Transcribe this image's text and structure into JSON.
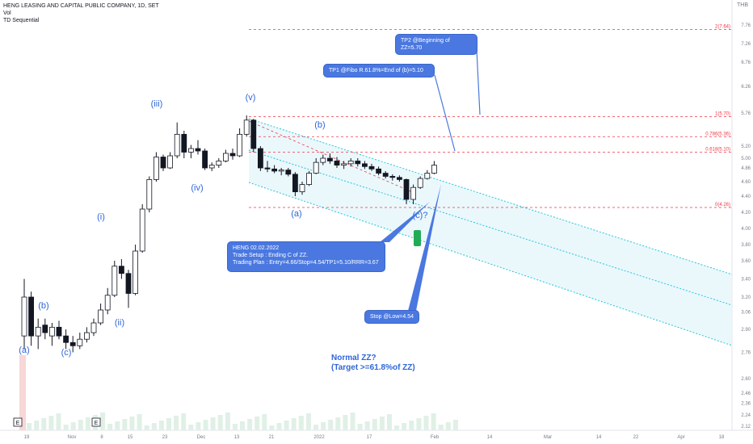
{
  "header": {
    "title": "HENG LEASING AND CAPITAL PUBLIC COMPANY, 1D, SET",
    "indicator1": "Vol",
    "indicator2": "TD Sequential",
    "currency": "THB"
  },
  "callouts": {
    "tp2": "TP2 @Beginning of ZZ=5.70",
    "tp1": "TP1 @Fibo R.61.8%=End of (b)=5.10",
    "setup_l1": "HENG 02.02.2022",
    "setup_l2": "Trade Setup : Ending C of ZZ.",
    "setup_l3": "Trading Plan : Entry=4.66/Stop=4.54/TP1=5.10/RRR=3.67",
    "stop": "Stop @Low=4.54"
  },
  "notes": {
    "zz1": "Normal ZZ?",
    "zz2": "(Target >=61.8%of ZZ)"
  },
  "earnings_marker": "E",
  "colors": {
    "up": "#131722",
    "down": "#131722",
    "wave": "#2f66d8",
    "fib": "#f23645",
    "channel": "#26c6da",
    "callout": "#4a78e0",
    "volume": "#e0f0e6"
  },
  "chart_data": {
    "type": "candlestick",
    "yaxis_ticks": [
      "7.76",
      "7.26",
      "6.76",
      "6.26",
      "5.76",
      "5.20",
      "5.00",
      "4.86",
      "4.60",
      "4.40",
      "4.20",
      "4.00",
      "3.80",
      "3.60",
      "3.40",
      "3.20",
      "3.06",
      "2.90",
      "2.76",
      "2.60",
      "2.46",
      "2.36",
      "2.24",
      "2.12"
    ],
    "xaxis_ticks": [
      "19",
      "Nov",
      "8",
      "15",
      "23",
      "Dec",
      "13",
      "21",
      "2022",
      "17",
      "Feb",
      "14",
      "Mar",
      "14",
      "22",
      "Apr",
      "18"
    ],
    "fib_levels": [
      {
        "label": "2(7.64)",
        "value": 7.64
      },
      {
        "label": "1(5.70)",
        "value": 5.7
      },
      {
        "label": "0.786(5.36)",
        "value": 5.36
      },
      {
        "label": "0.618(5.10)",
        "value": 5.1
      },
      {
        "label": "0(4.26)",
        "value": 4.26
      }
    ],
    "wave_labels": [
      "(a)",
      "(b)",
      "(c)",
      "(i)",
      "(ii)",
      "(iii)",
      "(iv)",
      "(v)",
      "(a)",
      "(b)",
      "(c)?"
    ],
    "candles": [
      {
        "o": 2.86,
        "h": 3.4,
        "l": 2.78,
        "c": 3.2
      },
      {
        "o": 3.2,
        "h": 3.26,
        "l": 2.8,
        "c": 2.86
      },
      {
        "o": 2.86,
        "h": 3.0,
        "l": 2.78,
        "c": 2.92
      },
      {
        "o": 2.94,
        "h": 3.0,
        "l": 2.84,
        "c": 2.88
      },
      {
        "o": 2.86,
        "h": 2.96,
        "l": 2.8,
        "c": 2.92
      },
      {
        "o": 2.92,
        "h": 2.98,
        "l": 2.84,
        "c": 2.86
      },
      {
        "o": 2.86,
        "h": 2.9,
        "l": 2.78,
        "c": 2.82
      },
      {
        "o": 2.82,
        "h": 2.86,
        "l": 2.76,
        "c": 2.8
      },
      {
        "o": 2.8,
        "h": 2.88,
        "l": 2.78,
        "c": 2.84
      },
      {
        "o": 2.84,
        "h": 2.92,
        "l": 2.82,
        "c": 2.88
      },
      {
        "o": 2.88,
        "h": 3.0,
        "l": 2.86,
        "c": 2.96
      },
      {
        "o": 2.96,
        "h": 3.14,
        "l": 2.94,
        "c": 3.08
      },
      {
        "o": 3.08,
        "h": 3.3,
        "l": 3.04,
        "c": 3.22
      },
      {
        "o": 3.22,
        "h": 3.6,
        "l": 3.2,
        "c": 3.54
      },
      {
        "o": 3.54,
        "h": 3.62,
        "l": 3.4,
        "c": 3.46
      },
      {
        "o": 3.46,
        "h": 3.5,
        "l": 3.1,
        "c": 3.24
      },
      {
        "o": 3.24,
        "h": 3.8,
        "l": 3.22,
        "c": 3.72
      },
      {
        "o": 3.72,
        "h": 4.3,
        "l": 3.7,
        "c": 4.24
      },
      {
        "o": 4.24,
        "h": 4.7,
        "l": 4.2,
        "c": 4.64
      },
      {
        "o": 4.64,
        "h": 5.1,
        "l": 4.6,
        "c": 5.02
      },
      {
        "o": 5.02,
        "h": 5.06,
        "l": 4.8,
        "c": 4.86
      },
      {
        "o": 4.86,
        "h": 5.1,
        "l": 4.84,
        "c": 5.04
      },
      {
        "o": 5.04,
        "h": 5.6,
        "l": 5.0,
        "c": 5.4
      },
      {
        "o": 5.4,
        "h": 5.46,
        "l": 5.0,
        "c": 5.1
      },
      {
        "o": 5.1,
        "h": 5.22,
        "l": 5.0,
        "c": 5.16
      },
      {
        "o": 5.16,
        "h": 5.3,
        "l": 5.06,
        "c": 5.12
      },
      {
        "o": 5.12,
        "h": 5.16,
        "l": 4.82,
        "c": 4.86
      },
      {
        "o": 4.86,
        "h": 4.94,
        "l": 4.8,
        "c": 4.9
      },
      {
        "o": 4.9,
        "h": 5.0,
        "l": 4.86,
        "c": 4.96
      },
      {
        "o": 4.96,
        "h": 5.14,
        "l": 4.94,
        "c": 5.08
      },
      {
        "o": 5.08,
        "h": 5.16,
        "l": 4.98,
        "c": 5.04
      },
      {
        "o": 5.04,
        "h": 5.5,
        "l": 5.02,
        "c": 5.4
      },
      {
        "o": 5.4,
        "h": 5.72,
        "l": 5.36,
        "c": 5.64
      },
      {
        "o": 5.64,
        "h": 5.66,
        "l": 5.1,
        "c": 5.16
      },
      {
        "o": 5.16,
        "h": 5.2,
        "l": 4.8,
        "c": 4.86
      },
      {
        "o": 4.86,
        "h": 4.96,
        "l": 4.78,
        "c": 4.84
      },
      {
        "o": 4.84,
        "h": 4.9,
        "l": 4.76,
        "c": 4.8
      },
      {
        "o": 4.8,
        "h": 4.86,
        "l": 4.72,
        "c": 4.82
      },
      {
        "o": 4.82,
        "h": 4.86,
        "l": 4.7,
        "c": 4.74
      },
      {
        "o": 4.74,
        "h": 4.78,
        "l": 4.4,
        "c": 4.46
      },
      {
        "o": 4.46,
        "h": 4.6,
        "l": 4.42,
        "c": 4.56
      },
      {
        "o": 4.56,
        "h": 4.8,
        "l": 4.54,
        "c": 4.76
      },
      {
        "o": 4.76,
        "h": 5.0,
        "l": 4.74,
        "c": 4.94
      },
      {
        "o": 4.94,
        "h": 5.06,
        "l": 4.9,
        "c": 5.0
      },
      {
        "o": 5.0,
        "h": 5.08,
        "l": 4.92,
        "c": 4.96
      },
      {
        "o": 4.96,
        "h": 5.02,
        "l": 4.86,
        "c": 4.9
      },
      {
        "o": 4.9,
        "h": 4.96,
        "l": 4.84,
        "c": 4.92
      },
      {
        "o": 4.92,
        "h": 5.0,
        "l": 4.88,
        "c": 4.96
      },
      {
        "o": 4.96,
        "h": 5.0,
        "l": 4.88,
        "c": 4.92
      },
      {
        "o": 4.92,
        "h": 4.96,
        "l": 4.84,
        "c": 4.88
      },
      {
        "o": 4.88,
        "h": 4.92,
        "l": 4.8,
        "c": 4.84
      },
      {
        "o": 4.84,
        "h": 4.88,
        "l": 4.72,
        "c": 4.76
      },
      {
        "o": 4.76,
        "h": 4.8,
        "l": 4.66,
        "c": 4.7
      },
      {
        "o": 4.7,
        "h": 4.74,
        "l": 4.62,
        "c": 4.68
      },
      {
        "o": 4.68,
        "h": 4.72,
        "l": 4.6,
        "c": 4.64
      },
      {
        "o": 4.64,
        "h": 4.66,
        "l": 4.3,
        "c": 4.36
      },
      {
        "o": 4.36,
        "h": 4.56,
        "l": 4.3,
        "c": 4.52
      },
      {
        "o": 4.52,
        "h": 4.7,
        "l": 4.5,
        "c": 4.66
      },
      {
        "o": 4.66,
        "h": 4.82,
        "l": 4.64,
        "c": 4.76
      },
      {
        "o": 4.76,
        "h": 4.96,
        "l": 4.74,
        "c": 4.9
      }
    ]
  }
}
